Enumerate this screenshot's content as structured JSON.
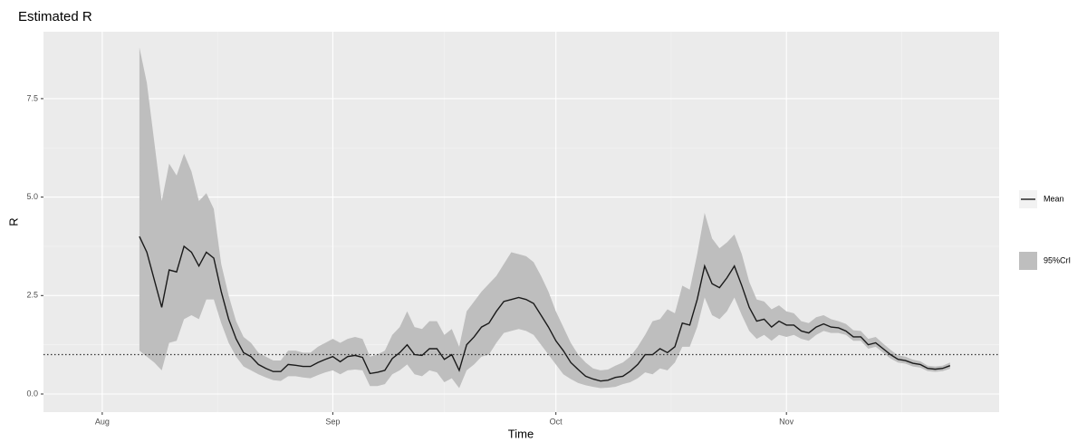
{
  "chart_data": {
    "type": "line",
    "title": "Estimated R",
    "xlabel": "Time",
    "ylabel": "R",
    "x": [
      5,
      6,
      7,
      8,
      9,
      10,
      11,
      12,
      13,
      14,
      15,
      16,
      17,
      18,
      19,
      20,
      21,
      22,
      23,
      24,
      25,
      26,
      27,
      28,
      29,
      30,
      31,
      32,
      33,
      34,
      35,
      36,
      37,
      38,
      39,
      40,
      41,
      42,
      43,
      44,
      45,
      46,
      47,
      48,
      49,
      50,
      51,
      52,
      53,
      54,
      55,
      56,
      57,
      58,
      59,
      60,
      61,
      62,
      63,
      64,
      65,
      66,
      67,
      68,
      69,
      70,
      71,
      72,
      73,
      74,
      75,
      76,
      77,
      78,
      79,
      80,
      81,
      82,
      83,
      84,
      85,
      86,
      87,
      88,
      89,
      90,
      91,
      92,
      93,
      94,
      95,
      96,
      97,
      98,
      99,
      100,
      101,
      102,
      103,
      104,
      105,
      106,
      107,
      108,
      109,
      110,
      111,
      112,
      113,
      114
    ],
    "series": [
      {
        "name": "Mean",
        "color": "#1a1a1a",
        "values": [
          4.0,
          3.6,
          2.9,
          2.2,
          3.15,
          3.1,
          3.75,
          3.6,
          3.25,
          3.6,
          3.45,
          2.6,
          1.9,
          1.4,
          1.05,
          0.95,
          0.75,
          0.65,
          0.57,
          0.57,
          0.75,
          0.73,
          0.7,
          0.7,
          0.8,
          0.88,
          0.95,
          0.82,
          0.95,
          0.98,
          0.93,
          0.52,
          0.55,
          0.6,
          0.9,
          1.05,
          1.25,
          1.0,
          0.98,
          1.15,
          1.15,
          0.88,
          1.0,
          0.6,
          1.25,
          1.45,
          1.7,
          1.8,
          2.1,
          2.35,
          2.4,
          2.45,
          2.4,
          2.3,
          2.0,
          1.7,
          1.35,
          1.1,
          0.8,
          0.62,
          0.45,
          0.38,
          0.33,
          0.35,
          0.42,
          0.45,
          0.58,
          0.75,
          1.0,
          1.0,
          1.15,
          1.05,
          1.2,
          1.8,
          1.75,
          2.4,
          3.25,
          2.8,
          2.7,
          2.95,
          3.25,
          2.75,
          2.2,
          1.85,
          1.9,
          1.7,
          1.85,
          1.75,
          1.75,
          1.6,
          1.55,
          1.7,
          1.78,
          1.7,
          1.68,
          1.6,
          1.45,
          1.45,
          1.25,
          1.3,
          1.15,
          1.0,
          0.88,
          0.85,
          0.78,
          0.75,
          0.65,
          0.63,
          0.65,
          0.72
        ]
      }
    ],
    "band": {
      "name": "95%CrI",
      "color": "#bebebe",
      "lower": [
        1.1,
        0.95,
        0.8,
        0.6,
        1.3,
        1.35,
        1.9,
        2.0,
        1.9,
        2.4,
        2.4,
        1.8,
        1.3,
        0.95,
        0.7,
        0.6,
        0.5,
        0.42,
        0.35,
        0.33,
        0.45,
        0.45,
        0.42,
        0.4,
        0.48,
        0.55,
        0.6,
        0.5,
        0.6,
        0.62,
        0.6,
        0.2,
        0.2,
        0.25,
        0.5,
        0.6,
        0.75,
        0.5,
        0.45,
        0.6,
        0.55,
        0.3,
        0.4,
        0.15,
        0.6,
        0.75,
        0.95,
        1.0,
        1.3,
        1.55,
        1.6,
        1.65,
        1.6,
        1.5,
        1.25,
        1.0,
        0.75,
        0.5,
        0.38,
        0.28,
        0.22,
        0.18,
        0.15,
        0.16,
        0.18,
        0.25,
        0.3,
        0.4,
        0.55,
        0.5,
        0.65,
        0.6,
        0.8,
        1.2,
        1.2,
        1.7,
        2.45,
        2.0,
        1.9,
        2.1,
        2.45,
        2.0,
        1.6,
        1.4,
        1.5,
        1.35,
        1.5,
        1.45,
        1.5,
        1.4,
        1.35,
        1.5,
        1.6,
        1.55,
        1.55,
        1.5,
        1.35,
        1.35,
        1.15,
        1.2,
        1.05,
        0.9,
        0.8,
        0.77,
        0.7,
        0.67,
        0.58,
        0.56,
        0.58,
        0.64
      ],
      "upper": [
        8.8,
        7.9,
        6.4,
        4.9,
        5.85,
        5.55,
        6.1,
        5.65,
        4.9,
        5.1,
        4.7,
        3.3,
        2.5,
        1.85,
        1.45,
        1.3,
        1.05,
        0.95,
        0.85,
        0.85,
        1.1,
        1.1,
        1.05,
        1.05,
        1.2,
        1.3,
        1.4,
        1.3,
        1.4,
        1.45,
        1.4,
        0.95,
        1.0,
        1.1,
        1.5,
        1.7,
        2.1,
        1.7,
        1.65,
        1.85,
        1.85,
        1.5,
        1.65,
        1.2,
        2.1,
        2.35,
        2.6,
        2.8,
        3.0,
        3.3,
        3.6,
        3.55,
        3.5,
        3.35,
        3.0,
        2.6,
        2.1,
        1.7,
        1.3,
        1.0,
        0.8,
        0.65,
        0.6,
        0.62,
        0.72,
        0.8,
        0.95,
        1.2,
        1.5,
        1.85,
        1.9,
        2.15,
        2.05,
        2.75,
        2.65,
        3.55,
        4.6,
        3.95,
        3.7,
        3.85,
        4.05,
        3.55,
        2.85,
        2.4,
        2.35,
        2.15,
        2.25,
        2.1,
        2.05,
        1.85,
        1.8,
        1.95,
        2.0,
        1.9,
        1.85,
        1.78,
        1.62,
        1.6,
        1.4,
        1.45,
        1.28,
        1.12,
        0.98,
        0.95,
        0.87,
        0.83,
        0.72,
        0.7,
        0.72,
        0.8
      ]
    },
    "hline": 1,
    "xlim": [
      -7.9,
      120.6
    ],
    "xticks": [
      {
        "value": 0,
        "label": "Aug"
      },
      {
        "value": 31,
        "label": "Sep"
      },
      {
        "value": 61,
        "label": "Oct"
      },
      {
        "value": 92,
        "label": "Nov"
      }
    ],
    "ylim": [
      -0.46,
      9.2
    ],
    "yticks": [
      {
        "value": 0,
        "label": "0.0"
      },
      2.5,
      {
        "value": 5,
        "label": "5.0"
      },
      7.5
    ],
    "grid": true
  }
}
